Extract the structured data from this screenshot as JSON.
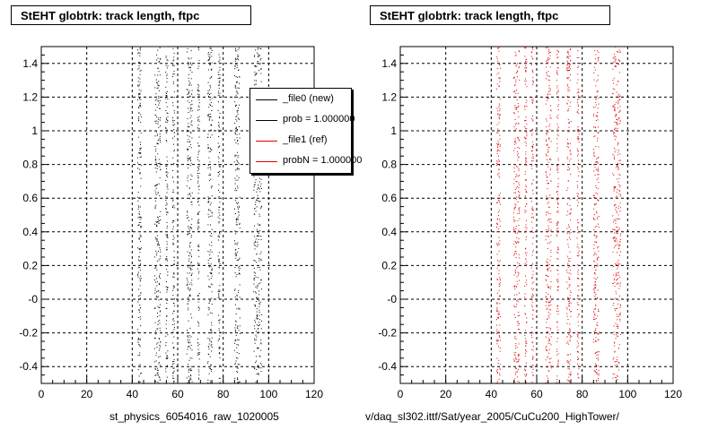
{
  "colors": {
    "new": "#000000",
    "ref": "#e00000"
  },
  "chart_data": [
    {
      "type": "scatter",
      "title": "StEHT globtrk: track length, ftpc",
      "xlabel": "st_physics_6054016_raw_1020005",
      "ylabel": "",
      "xlim": [
        0,
        120
      ],
      "ylim": [
        -0.5,
        1.5
      ],
      "grid": true,
      "x_ticks": [
        "0",
        "20",
        "40",
        "60",
        "80",
        "100",
        "120"
      ],
      "y_ticks": [
        "-0.4",
        "-0.2",
        "-0",
        "0.2",
        "0.4",
        "0.6",
        "0.8",
        "1",
        "1.2",
        "1.4"
      ],
      "series": [
        {
          "name": "_file0 (new)",
          "color": "#000000",
          "bands": [
            [
              43,
              1
            ],
            [
              51,
              1.6
            ],
            [
              55,
              0.6
            ],
            [
              58,
              0.5
            ],
            [
              65,
              1.5
            ],
            [
              69,
              0.5
            ],
            [
              74,
              1.2
            ],
            [
              78,
              0.5
            ],
            [
              86,
              1.5
            ],
            [
              95,
              2.2
            ]
          ]
        }
      ],
      "legend": {
        "position": "top-right",
        "entries": [
          "_file0 (new)",
          "prob = 1.000000",
          "_file1 (ref)",
          "probN = 1.000000"
        ]
      }
    },
    {
      "type": "scatter",
      "title": "StEHT globtrk: track length, ftpc",
      "xlabel": "v/daq_sl302.ittf/Sat/year_2005/CuCu200_HighTower/",
      "ylabel": "",
      "xlim": [
        0,
        120
      ],
      "ylim": [
        -0.5,
        1.5
      ],
      "grid": true,
      "x_ticks": [
        "0",
        "20",
        "40",
        "60",
        "80",
        "100",
        "120"
      ],
      "y_ticks": [
        "-0.4",
        "-0.2",
        "-0",
        "0.2",
        "0.4",
        "0.6",
        "0.8",
        "1",
        "1.2",
        "1.4"
      ],
      "series": [
        {
          "name": "_file1 (ref)",
          "color": "#e00000",
          "bands": [
            [
              43,
              1
            ],
            [
              51,
              1.6
            ],
            [
              55,
              0.6
            ],
            [
              58,
              0.5
            ],
            [
              65,
              1.5
            ],
            [
              69,
              0.5
            ],
            [
              74,
              1.2
            ],
            [
              78,
              0.5
            ],
            [
              86,
              1.5
            ],
            [
              95,
              2.2
            ]
          ]
        }
      ]
    }
  ]
}
